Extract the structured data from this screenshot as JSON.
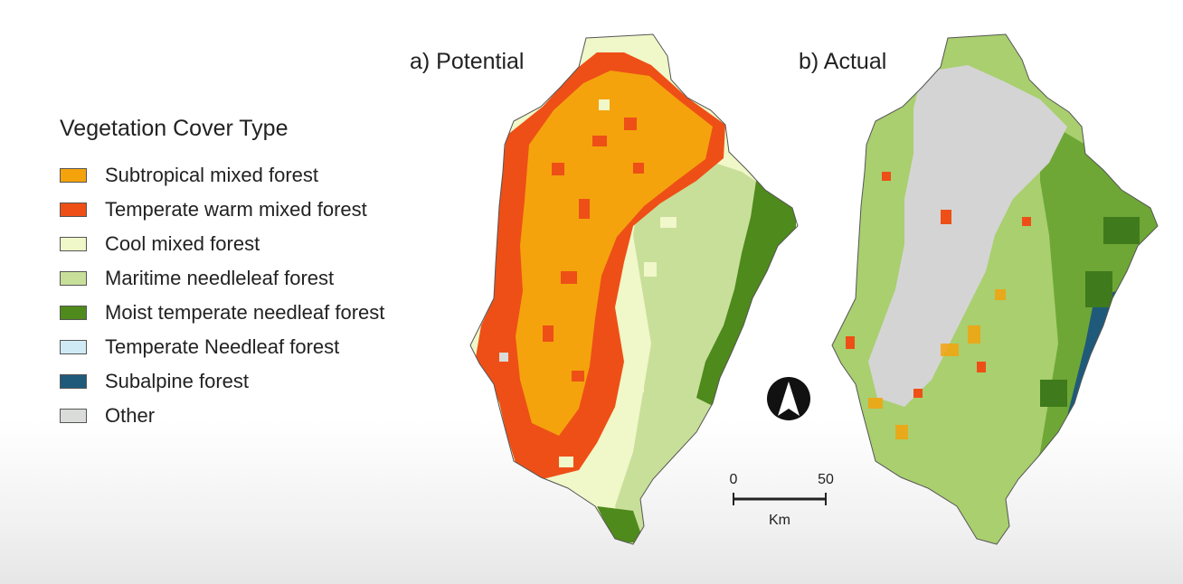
{
  "legend": {
    "title": "Vegetation Cover Type",
    "items": [
      {
        "label": "Subtropical mixed forest",
        "color": "#f4a30d"
      },
      {
        "label": "Temperate warm mixed forest",
        "color": "#ee4f17"
      },
      {
        "label": "Cool mixed forest",
        "color": "#f0f7c8"
      },
      {
        "label": "Maritime needleleaf forest",
        "color": "#c8df9a"
      },
      {
        "label": "Moist temperate needleaf forest",
        "color": "#4f8a1c"
      },
      {
        "label": "Temperate Needleaf forest",
        "color": "#cfeaf5"
      },
      {
        "label": "Subalpine forest",
        "color": "#1f5a7a"
      },
      {
        "label": "Other",
        "color": "#d9dcd9"
      }
    ]
  },
  "maps": {
    "potential_title": "a) Potential",
    "actual_title": "b) Actual"
  },
  "north_arrow": {
    "icon": "north-arrow-icon"
  },
  "scale_bar": {
    "start": "0",
    "end": "50",
    "unit": "Km"
  }
}
